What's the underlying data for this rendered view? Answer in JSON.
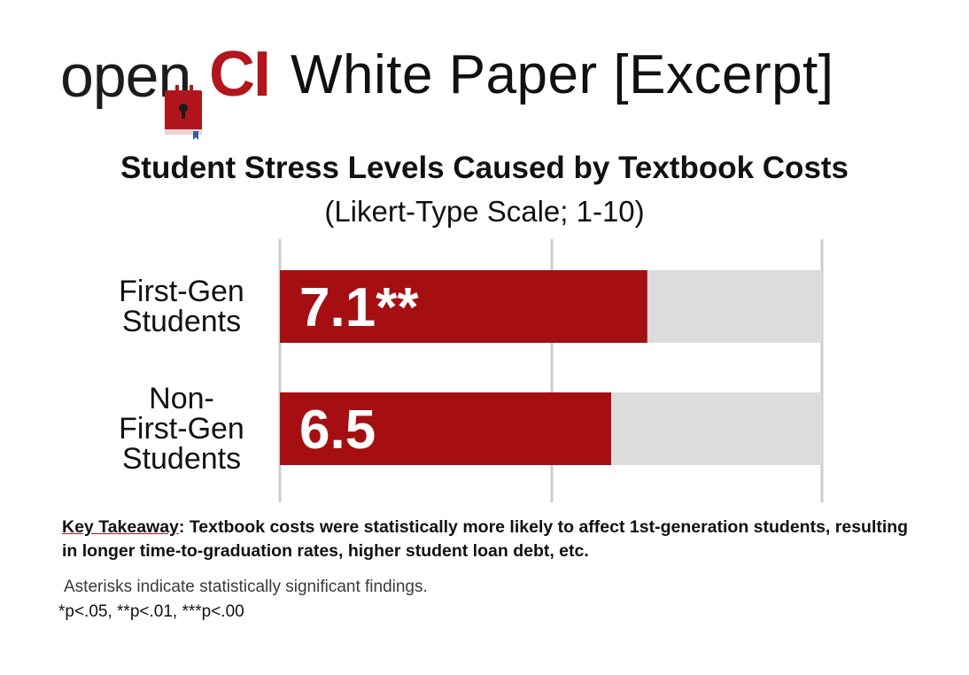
{
  "header": {
    "logo_open": "open",
    "logo_ci": "CI",
    "paper_title": "White Paper [Excerpt]"
  },
  "colors": {
    "bar_fill": "#a50f12",
    "track_fill": "#dcdcdc",
    "grid_line": "#cccccc",
    "brand_red": "#b0161c"
  },
  "chart_data": {
    "type": "bar",
    "orientation": "horizontal",
    "title": "Student Stress Levels Caused by Textbook Costs",
    "subtitle": "(Likert-Type Scale; 1-10)",
    "categories": [
      [
        "First-Gen",
        "Students"
      ],
      [
        "Non-",
        "First-Gen",
        "Students"
      ]
    ],
    "values": [
      7.1,
      6.5
    ],
    "value_labels": [
      "7.1**",
      "6.5"
    ],
    "xlim": [
      1,
      10
    ],
    "grid": true
  },
  "footer": {
    "takeaway_key": "Key Takeaway",
    "takeaway_text": ": Textbook costs were statistically more likely to affect 1st-generation students, resulting in longer time-to-graduation rates, higher student loan debt, etc.",
    "asterisk_note": "Asterisks indicate statistically significant findings.",
    "p_values": "*p<.05, **p<.01, ***p<.00"
  }
}
